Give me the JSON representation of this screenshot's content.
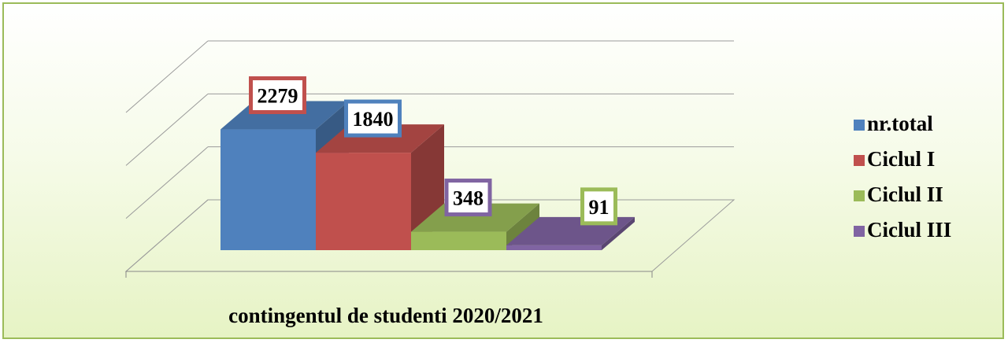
{
  "chart_data": {
    "type": "bar3d",
    "categories": [
      "contingentul de studenti 2020/2021"
    ],
    "series": [
      {
        "name": "nr.total",
        "color": "#4f81bd",
        "values": [
          2279
        ]
      },
      {
        "name": "Ciclul I",
        "color": "#c0504d",
        "values": [
          1840
        ]
      },
      {
        "name": "Ciclul II",
        "color": "#9bbb59",
        "values": [
          348
        ]
      },
      {
        "name": "Ciclul III",
        "color": "#8064a2",
        "values": [
          91
        ]
      }
    ],
    "ylim": [
      0,
      3000
    ],
    "yticks": [
      0,
      1000,
      2000,
      3000
    ],
    "grid": true,
    "legend": "right"
  }
}
